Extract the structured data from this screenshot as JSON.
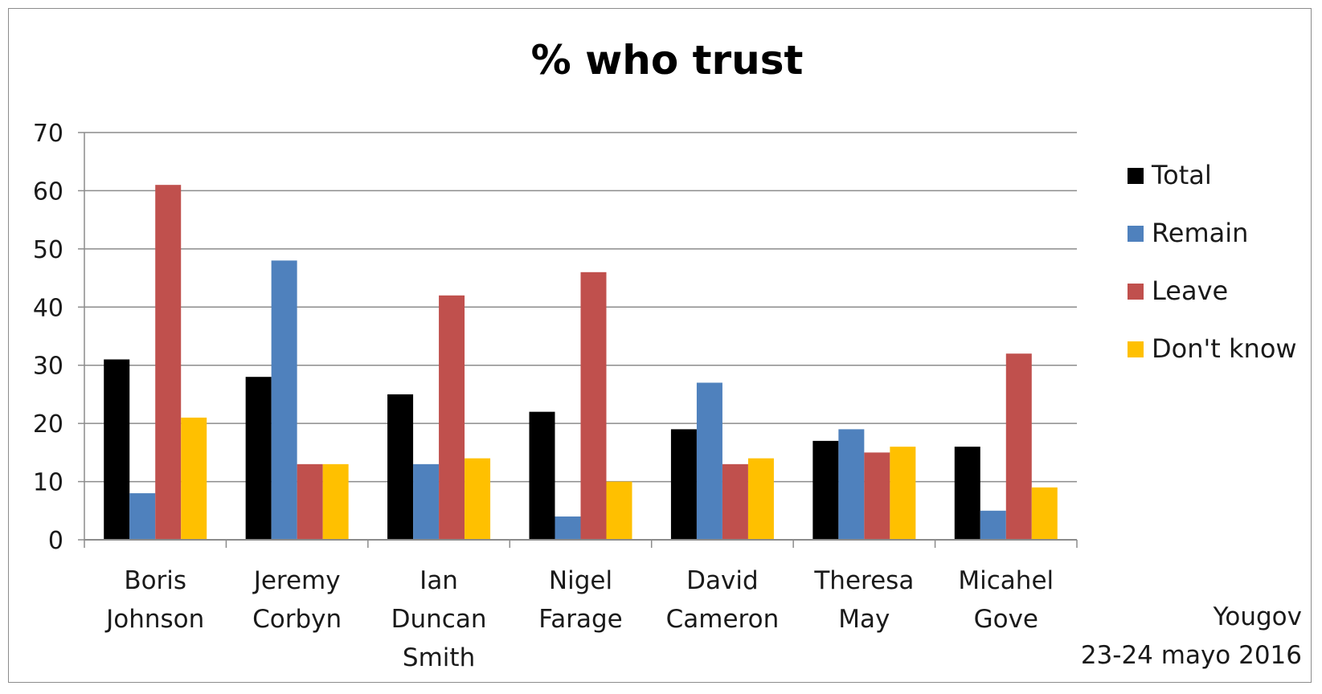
{
  "chart_data": {
    "type": "bar",
    "title": "% who trust",
    "categories": [
      [
        "Boris",
        "Johnson"
      ],
      [
        "Jeremy",
        "Corbyn"
      ],
      [
        "Ian",
        "Duncan",
        "Smith"
      ],
      [
        "Nigel",
        "Farage"
      ],
      [
        "David",
        "Cameron"
      ],
      [
        "Theresa",
        "May"
      ],
      [
        "Micahel",
        "Gove"
      ]
    ],
    "series": [
      {
        "name": "Total",
        "color": "#000000",
        "values": [
          31,
          28,
          25,
          22,
          19,
          17,
          16
        ]
      },
      {
        "name": "Remain",
        "color": "#4f81bd",
        "values": [
          8,
          48,
          13,
          4,
          27,
          19,
          5
        ]
      },
      {
        "name": "Leave",
        "color": "#c0504d",
        "values": [
          61,
          13,
          42,
          46,
          13,
          15,
          32
        ]
      },
      {
        "name": "Don't know",
        "color": "#ffc000",
        "values": [
          21,
          13,
          14,
          10,
          14,
          16,
          9
        ]
      }
    ],
    "ylim": [
      0,
      70
    ],
    "yticks": [
      "0",
      "10",
      "20",
      "30",
      "40",
      "50",
      "60",
      "70"
    ],
    "grid": true,
    "legend_position": "right"
  },
  "source_note": {
    "line1": "Yougov",
    "line2": "23-24 mayo 2016"
  }
}
